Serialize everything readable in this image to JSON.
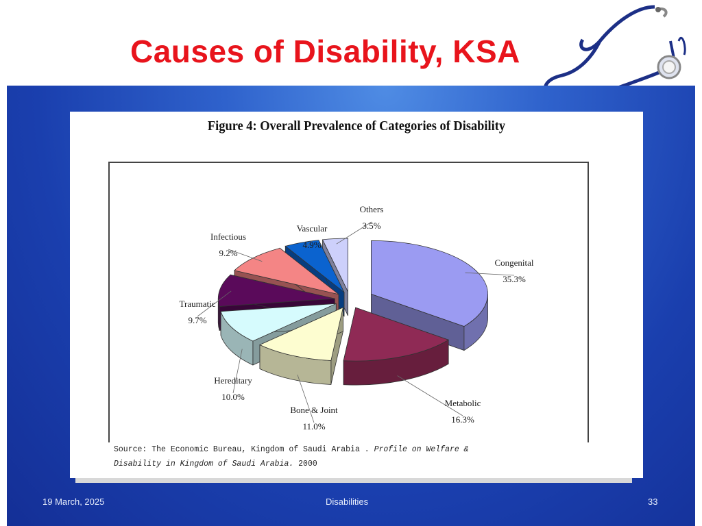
{
  "slide": {
    "title": "Causes of Disability, KSA",
    "date": "19 March, 2025",
    "footer_center": "Disabilities",
    "page_number": "33"
  },
  "figure": {
    "title": "Figure 4: Overall Prevalence of Categories of Disability",
    "source_line1_plain": "Source: The Economic Bureau, Kingdom of Saudi Arabia . ",
    "source_line1_italic": "Profile on Welfare &",
    "source_line2_italic": "Disability in Kingdom of Saudi Arabia.",
    "source_line2_plain": " 2000"
  },
  "chart_data": {
    "type": "pie",
    "title": "Figure 4: Overall Prevalence of Categories of Disability",
    "slices": [
      {
        "label": "Congenital",
        "value": 35.3,
        "value_label": "35.3%",
        "color": "#9b9bf2"
      },
      {
        "label": "Metabolic",
        "value": 16.3,
        "value_label": "16.3%",
        "color": "#8f2a55"
      },
      {
        "label": "Bone & Joint",
        "value": 11.0,
        "value_label": "11.0%",
        "color": "#fdfdd0"
      },
      {
        "label": "Hereditary",
        "value": 10.0,
        "value_label": "10.0%",
        "color": "#d6fbfd"
      },
      {
        "label": "Traumatic",
        "value": 9.7,
        "value_label": "9.7%",
        "color": "#5a0a5a"
      },
      {
        "label": "Infectious",
        "value": 9.2,
        "value_label": "9.2%",
        "color": "#f48585"
      },
      {
        "label": "Vascular",
        "value": 4.9,
        "value_label": "4.9%",
        "color": "#0b63cf"
      },
      {
        "label": "Others",
        "value": 3.5,
        "value_label": "3.5%",
        "color": "#cdd0fb"
      }
    ]
  },
  "colors": {
    "title": "#e8141c",
    "panel": "#1a3fae"
  },
  "icons": {
    "decoration": "stethoscope-icon"
  }
}
